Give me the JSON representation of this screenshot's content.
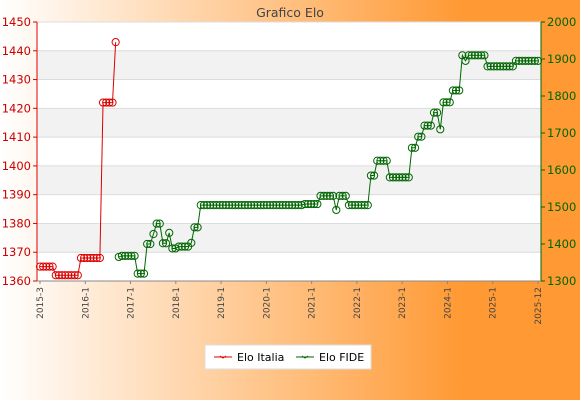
{
  "chart_data": {
    "type": "line",
    "title": "Grafico Elo",
    "legend_position": "bottom",
    "grid": true,
    "colors": {
      "italia": "#dd0000",
      "fide": "#006600",
      "background_gradient_from": "#ffffff",
      "background_gradient_to": "#ff9933",
      "band": "#f2f2f2"
    },
    "y_left": {
      "range": [
        1360,
        1450
      ],
      "ticks": [
        1360,
        1370,
        1380,
        1390,
        1400,
        1410,
        1420,
        1430,
        1440,
        1450
      ]
    },
    "y_right": {
      "range": [
        1300,
        2000
      ],
      "ticks": [
        1300,
        1400,
        1500,
        1600,
        1700,
        1800,
        1900,
        2000
      ]
    },
    "x_ticks": [
      "2015-3",
      "2016-1",
      "2017-1",
      "2018-1",
      "2019-1",
      "2020-1",
      "2021-1",
      "2022-1",
      "2023-1",
      "2024-1",
      "2025-1",
      "2025-12"
    ],
    "series": [
      {
        "name": "Elo Italia",
        "axis": "left",
        "values": [
          1365,
          1365,
          1365,
          1365,
          1365,
          1362,
          1362,
          1362,
          1362,
          1362,
          1362,
          1362,
          1362,
          1368,
          1368,
          1368,
          1368,
          1368,
          1368,
          1368,
          1422,
          1422,
          1422,
          1422,
          1443
        ]
      },
      {
        "name": "Elo FIDE",
        "axis": "right",
        "start_index": 25,
        "values": [
          1365,
          1368,
          1368,
          1368,
          1368,
          1368,
          1320,
          1320,
          1320,
          1400,
          1400,
          1427,
          1455,
          1455,
          1402,
          1402,
          1430,
          1388,
          1388,
          1393,
          1393,
          1393,
          1393,
          1403,
          1445,
          1445,
          1505,
          1505,
          1505,
          1505,
          1505,
          1505,
          1505,
          1505,
          1505,
          1505,
          1505,
          1505,
          1505,
          1505,
          1505,
          1505,
          1505,
          1505,
          1505,
          1505,
          1505,
          1505,
          1505,
          1505,
          1505,
          1505,
          1505,
          1505,
          1505,
          1505,
          1505,
          1505,
          1505,
          1508,
          1508,
          1508,
          1508,
          1508,
          1530,
          1530,
          1530,
          1530,
          1530,
          1492,
          1530,
          1530,
          1530,
          1505,
          1505,
          1505,
          1505,
          1505,
          1505,
          1505,
          1585,
          1585,
          1625,
          1625,
          1625,
          1625,
          1580,
          1580,
          1580,
          1580,
          1580,
          1580,
          1580,
          1660,
          1660,
          1690,
          1690,
          1720,
          1720,
          1720,
          1755,
          1755,
          1710,
          1783,
          1783,
          1783,
          1815,
          1815,
          1815,
          1910,
          1895,
          1910,
          1910,
          1910,
          1910,
          1910,
          1910,
          1880,
          1880,
          1880,
          1880,
          1880,
          1880,
          1880,
          1880,
          1880,
          1895,
          1895,
          1895,
          1895,
          1895,
          1895,
          1895,
          1895
        ]
      }
    ]
  }
}
